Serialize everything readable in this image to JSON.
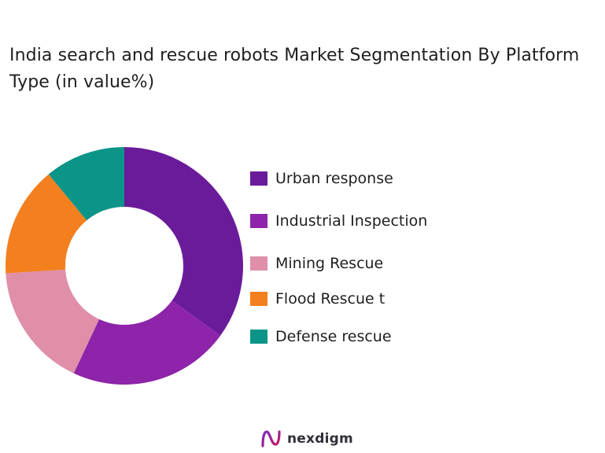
{
  "title": "India search and rescue robots Market Segmentation By Platform Type (in value%)",
  "brand": {
    "name": "nexdigm",
    "logo_icon": "nexdigm-n-logo-icon"
  },
  "chart_data": {
    "type": "pie",
    "style": "donut",
    "title": "India search and rescue robots Market Segmentation By Platform Type (in value%)",
    "categories": [
      "Urban response",
      "Industrial Inspection",
      "Mining Rescue",
      "Flood Rescue t",
      "Defense rescue"
    ],
    "values": [
      35,
      22,
      17,
      15,
      11
    ],
    "colors": [
      "#6a1b9a",
      "#8e24aa",
      "#df8fa8",
      "#f47f1f",
      "#0b9488"
    ],
    "legend_position": "right",
    "start_angle": "12 o'clock",
    "direction": "clockwise"
  }
}
